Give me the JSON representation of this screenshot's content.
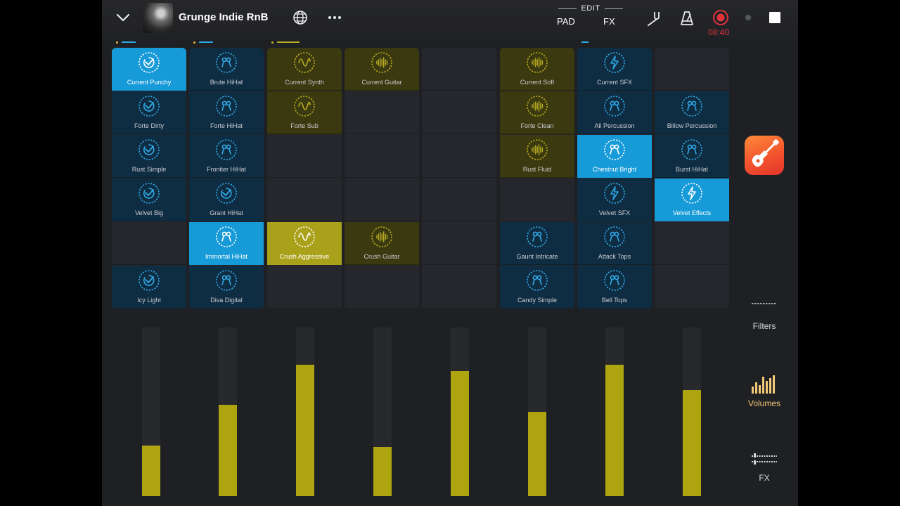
{
  "header": {
    "song_title": "Grunge Indie RnB",
    "edit_label": "EDIT",
    "pad_label": "PAD",
    "fx_label": "FX",
    "record_time": "08:40"
  },
  "colors": {
    "blue": "#179ad8",
    "yellow": "#aea40f",
    "record": "#e0323a",
    "active_side": "#f2c977"
  },
  "columns": [
    {
      "indicator": "blue",
      "cells": [
        {
          "name": "Current Punchy",
          "icon": "drum-icon",
          "state": "active"
        },
        {
          "name": "Forte Dirty",
          "icon": "drum-icon",
          "state": "filled"
        },
        {
          "name": "Rust Simple",
          "icon": "drum-icon",
          "state": "filled"
        },
        {
          "name": "Velvet Big",
          "icon": "drum-icon",
          "state": "filled"
        },
        {
          "name": "",
          "icon": "",
          "state": "empty"
        },
        {
          "name": "Icy Light",
          "icon": "drum-icon",
          "state": "filled"
        }
      ]
    },
    {
      "indicator": "blue",
      "cells": [
        {
          "name": "Brute HiHat",
          "icon": "hihat-icon",
          "state": "filled"
        },
        {
          "name": "Forte HiHat",
          "icon": "hihat-icon",
          "state": "filled"
        },
        {
          "name": "Frontier HiHat",
          "icon": "hihat-icon",
          "state": "filled"
        },
        {
          "name": "Grant HiHat",
          "icon": "drum-icon",
          "state": "filled"
        },
        {
          "name": "Immortal HiHat",
          "icon": "hihat-icon",
          "state": "active"
        },
        {
          "name": "Diva Digital",
          "icon": "hihat-icon",
          "state": "filled"
        }
      ]
    },
    {
      "indicator": "yellow",
      "cells": [
        {
          "name": "Current Synth",
          "icon": "sine-wave-icon",
          "state": "filled"
        },
        {
          "name": "Forte Sub",
          "icon": "sine-wave-icon",
          "state": "filled"
        },
        {
          "name": "",
          "icon": "",
          "state": "empty"
        },
        {
          "name": "",
          "icon": "",
          "state": "empty"
        },
        {
          "name": "Crush Aggressive",
          "icon": "sine-wave-icon",
          "state": "active"
        },
        {
          "name": "",
          "icon": "",
          "state": "empty"
        }
      ]
    },
    {
      "indicator": "",
      "cells": [
        {
          "name": "Current Guitar",
          "icon": "waveform-icon",
          "state": "filled"
        },
        {
          "name": "",
          "icon": "",
          "state": "empty"
        },
        {
          "name": "",
          "icon": "",
          "state": "empty"
        },
        {
          "name": "",
          "icon": "",
          "state": "empty"
        },
        {
          "name": "Crush Guitar",
          "icon": "waveform-icon",
          "state": "filled"
        },
        {
          "name": "",
          "icon": "",
          "state": "empty"
        }
      ]
    },
    {
      "indicator": "",
      "cells": [
        {
          "name": "",
          "icon": "",
          "state": "empty"
        },
        {
          "name": "",
          "icon": "",
          "state": "empty"
        },
        {
          "name": "",
          "icon": "",
          "state": "empty"
        },
        {
          "name": "",
          "icon": "",
          "state": "empty"
        },
        {
          "name": "",
          "icon": "",
          "state": "empty"
        },
        {
          "name": "",
          "icon": "",
          "state": "empty"
        }
      ]
    },
    {
      "indicator": "",
      "cells": [
        {
          "name": "Current Soft",
          "icon": "waveform-icon",
          "state": "filled"
        },
        {
          "name": "Forte Clean",
          "icon": "waveform-icon",
          "state": "filled"
        },
        {
          "name": "Rust Fluid",
          "icon": "waveform-icon",
          "state": "filled"
        },
        {
          "name": "",
          "icon": "",
          "state": "empty"
        },
        {
          "name": "Gaunt Intricate",
          "icon": "hihat-icon",
          "state": "filled"
        },
        {
          "name": "Candy Simple",
          "icon": "hihat-icon",
          "state": "filled"
        }
      ]
    },
    {
      "indicator": "blue-short",
      "cells": [
        {
          "name": "Current SFX",
          "icon": "lightning-icon",
          "state": "filled"
        },
        {
          "name": "All Percussion",
          "icon": "hihat-icon",
          "state": "filled"
        },
        {
          "name": "Chestnut Bright",
          "icon": "hihat-icon",
          "state": "active"
        },
        {
          "name": "Velvet SFX",
          "icon": "lightning-icon",
          "state": "filled"
        },
        {
          "name": "Attack Tops",
          "icon": "hihat-icon",
          "state": "filled"
        },
        {
          "name": "Bell Tops",
          "icon": "hihat-icon",
          "state": "filled"
        }
      ]
    },
    {
      "indicator": "",
      "cells": [
        {
          "name": "",
          "icon": "",
          "state": "empty"
        },
        {
          "name": "Billow Percussion",
          "icon": "hihat-icon",
          "state": "filled"
        },
        {
          "name": "Burst HiHat",
          "icon": "hihat-icon",
          "state": "filled"
        },
        {
          "name": "Velvet Effects",
          "icon": "lightning-icon",
          "state": "active"
        },
        {
          "name": "",
          "icon": "",
          "state": "empty"
        },
        {
          "name": "",
          "icon": "",
          "state": "empty"
        }
      ]
    }
  ],
  "volumes": [
    0.3,
    0.54,
    0.78,
    0.29,
    0.74,
    0.5,
    0.78,
    0.63
  ],
  "side_panel": {
    "filters_label": "Filters",
    "volumes_label": "Volumes",
    "fx_label": "FX",
    "active": "volumes"
  }
}
